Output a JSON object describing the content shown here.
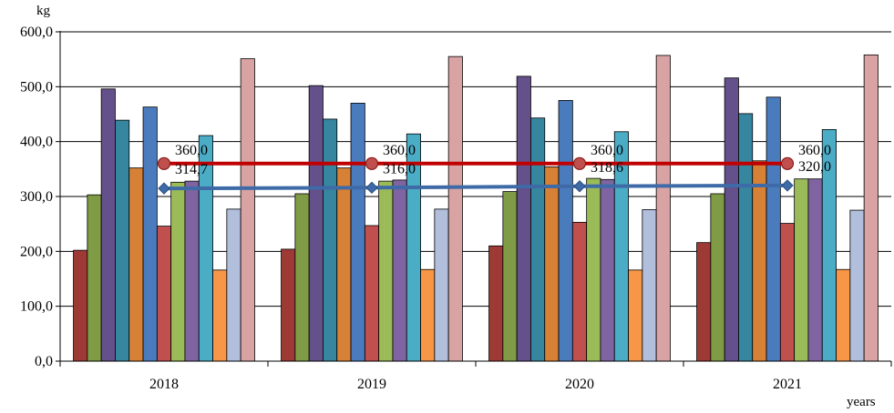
{
  "chart_data": {
    "type": "bar",
    "title": "",
    "xlabel": "years",
    "ylabel": "kg",
    "ylim": [
      0,
      600
    ],
    "ytick_step": 100,
    "ytick_labels": [
      "0,0",
      "100,0",
      "200,0",
      "300,0",
      "400,0",
      "500,0",
      "600,0"
    ],
    "grid": "horizontal",
    "legend": "none",
    "categories": [
      "2018",
      "2019",
      "2020",
      "2021"
    ],
    "series": [
      {
        "color": "#9e3a36",
        "values": [
          202,
          204,
          210,
          216
        ]
      },
      {
        "color": "#7f9b45",
        "values": [
          303,
          305,
          309,
          305
        ]
      },
      {
        "color": "#64508a",
        "values": [
          496,
          502,
          519,
          516
        ]
      },
      {
        "color": "#35869e",
        "values": [
          439,
          441,
          443,
          451
        ]
      },
      {
        "color": "#d68136",
        "values": [
          352,
          352,
          354,
          365
        ]
      },
      {
        "color": "#4a7bbd",
        "values": [
          463,
          470,
          475,
          481
        ]
      },
      {
        "color": "#c0504d",
        "values": [
          246,
          247,
          253,
          251
        ]
      },
      {
        "color": "#9bbb59",
        "values": [
          326,
          328,
          333,
          332
        ]
      },
      {
        "color": "#8064a2",
        "values": [
          328,
          330,
          331,
          332
        ]
      },
      {
        "color": "#4bacc6",
        "values": [
          411,
          414,
          418,
          422
        ]
      },
      {
        "color": "#f79646",
        "values": [
          166,
          167,
          166,
          167
        ]
      },
      {
        "color": "#b1bfdc",
        "values": [
          277,
          277,
          276,
          275
        ]
      },
      {
        "color": "#d9a3a3",
        "values": [
          551,
          555,
          557,
          558
        ]
      }
    ],
    "lines": [
      {
        "type": "line",
        "color": "#c00000",
        "marker": "circle",
        "values": [
          360.0,
          360.0,
          360.0,
          360.0
        ],
        "labels": [
          "360,0",
          "360,0",
          "360,0",
          "360,0"
        ]
      },
      {
        "type": "line",
        "color": "#3e6aa8",
        "marker": "diamond",
        "values": [
          314.7,
          316.0,
          318.6,
          320.0
        ],
        "labels": [
          "314,7",
          "316,0",
          "318,6",
          "320,0"
        ]
      }
    ]
  }
}
